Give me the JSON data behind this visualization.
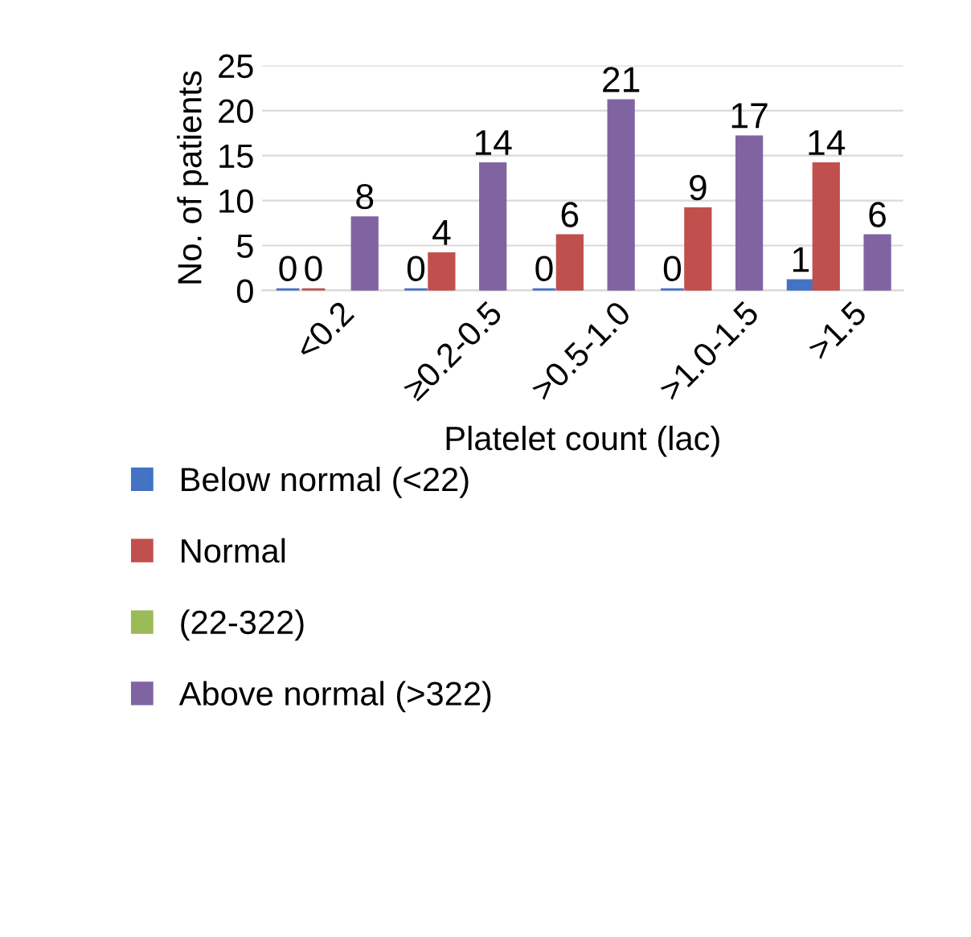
{
  "chart_data": {
    "type": "bar",
    "xlabel": "Platelet count (lac)",
    "ylabel": "No. of patients",
    "categories": [
      "<0.2",
      "≥0.2-0.5",
      ">0.5-1.0",
      ">1.0-1.5",
      ">1.5"
    ],
    "series": [
      {
        "name": "Below normal (<22)",
        "color": "#4472c4",
        "values": [
          0,
          0,
          0,
          0,
          1
        ]
      },
      {
        "name": "Normal",
        "color": "#c0504d",
        "values": [
          0,
          4,
          6,
          9,
          14
        ]
      },
      {
        "name": "(22-322)",
        "color": "#9bbb59",
        "values": [
          null,
          null,
          null,
          null,
          null
        ]
      },
      {
        "name": "Above normal (>322)",
        "color": "#8064a2",
        "values": [
          8,
          14,
          21,
          17,
          6
        ]
      }
    ],
    "ylim": [
      0,
      25
    ],
    "yticks": [
      0,
      5,
      10,
      15,
      20,
      25
    ],
    "grid": "y",
    "legend": "bottom",
    "data_labels": true
  }
}
